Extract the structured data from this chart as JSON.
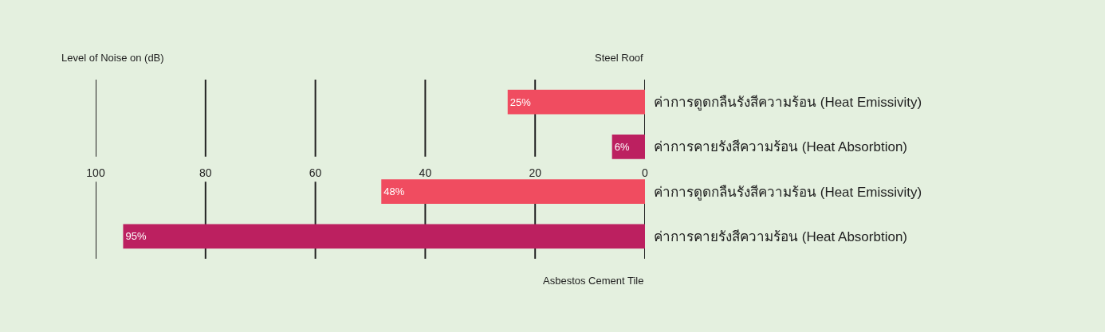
{
  "chart_data": {
    "type": "bar",
    "orientation": "horizontal",
    "xlabel": "Level of Noise on (dB)",
    "categories": [
      "ค่าการดูดกลืนรังสีความร้อน (Heat Emissivity)",
      "ค่าการคายรังสีความร้อน (Heat Absorbtion)",
      "ค่าการดูดกลืนรังสีความร้อน (Heat Emissivity)",
      "ค่าการคายรังสีความร้อน (Heat Absorbtion)"
    ],
    "values": [
      25,
      6,
      48,
      95
    ],
    "value_labels": [
      "25%",
      "6%",
      "48%",
      "95%"
    ],
    "colors": [
      "#f04c60",
      "#bc2060",
      "#f04c60",
      "#bc2060"
    ],
    "xlim": [
      100,
      0
    ],
    "xticks": [
      100,
      80,
      60,
      40,
      20,
      0
    ],
    "grid": "x",
    "annotations": [
      "Steel Roof",
      "Asbestos Cement Tile"
    ]
  }
}
